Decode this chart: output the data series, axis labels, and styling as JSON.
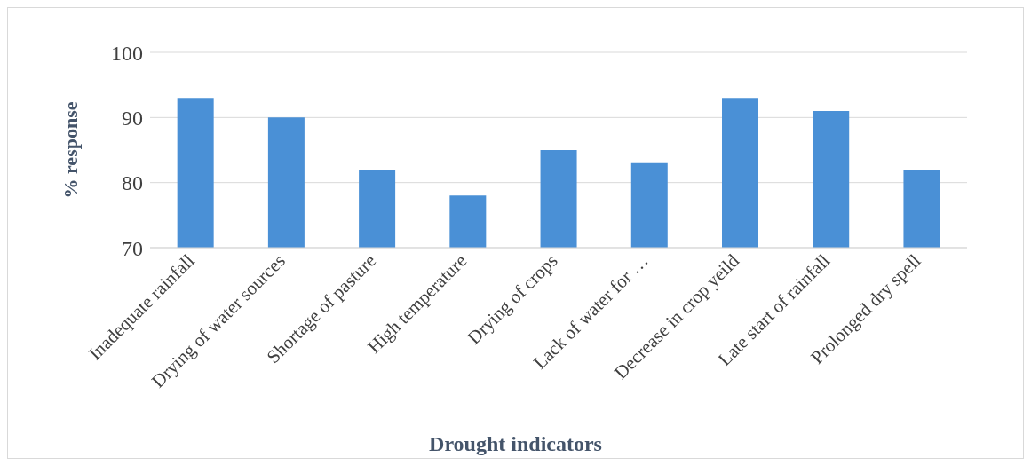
{
  "chart_data": {
    "type": "bar",
    "xlabel": "Drought indicators",
    "ylabel": "% response",
    "categories": [
      "Inadequate rainfall",
      "Drying of water sources",
      "Shortage of pasture",
      "High temperature",
      "Drying of crops",
      "Lack of water for …",
      "Decrease in crop yeild",
      "Late start of rainfall",
      "Prolonged dry spell"
    ],
    "values": [
      93,
      90,
      82,
      78,
      85,
      83,
      93,
      91,
      82
    ],
    "color": "#4a90d6",
    "ylim": [
      70,
      100
    ],
    "yticks": [
      70,
      80,
      90,
      100
    ],
    "grid": "y"
  }
}
